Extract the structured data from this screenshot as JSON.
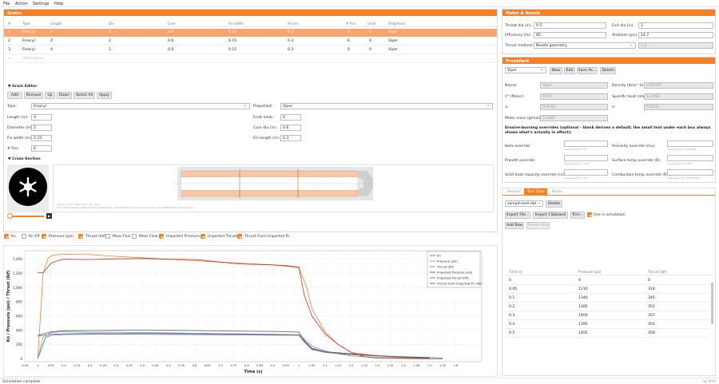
{
  "menu": [
    "File",
    "Action",
    "Settings",
    "Help"
  ],
  "grains": {
    "title": "Grains",
    "columns": [
      "#",
      "Type",
      "Length",
      "Dia",
      "Core",
      "Fin width",
      "Fin len",
      "# fins",
      "Units",
      "Propellant"
    ],
    "rows": [
      [
        "1",
        "Finocyl",
        "4",
        "2",
        "0.6",
        "0.15",
        "0.3",
        "6",
        "0",
        "Viper"
      ],
      [
        "2",
        "Finocyl",
        "4",
        "2",
        "0.6",
        "0.15",
        "0.3",
        "6",
        "0",
        "Viper"
      ],
      [
        "3",
        "Finocyl",
        "4",
        "2",
        "0.6",
        "0.15",
        "0.3",
        "6",
        "0",
        "Viper"
      ]
    ],
    "add_row_symbol": "+",
    "add_placeholder": "add a grain"
  },
  "grain_editor": {
    "title": "▼ Grain Editor",
    "buttons": [
      "Add",
      "Remove",
      "Up",
      "Down",
      "Select All",
      "Apply"
    ],
    "type_label": "Type:",
    "type_value": "Finocyl",
    "propellant_label": "Propellant:",
    "propellant_value": "Viper",
    "length_label": "Length (in):",
    "length_value": "4",
    "diameter_label": "Diameter (in):",
    "diameter_value": "2",
    "fin_width_label": "Fin width (in):",
    "fin_width_value": "0.15",
    "fins_label": "# fins:",
    "fins_value": "6",
    "ends_label": "Ends inhib.:",
    "ends_value": "0",
    "core_label": "Core dia (in):",
    "core_value": "0.6",
    "fin_length_label": "Fin length (in):",
    "fin_length_value": "0.3"
  },
  "cross_section": {
    "title": "▼ Cross-Section",
    "caption1": "3 grains · 12.0 in total · Finocyl (x3 · sel 1)",
    "caption2": "Cut on the horizontal centerline of the selected grain · shapes that don't render above use the section differently or at other angles"
  },
  "plot_toggles": [
    {
      "label": "Kn",
      "on": true
    },
    {
      "label": "Kn Eff",
      "on": false
    },
    {
      "label": "Pressure (psi)",
      "on": true
    },
    {
      "label": "Thrust (lbf)",
      "on": true
    },
    {
      "label": "Mass Flux",
      "on": false
    },
    {
      "label": "Mass Flow",
      "on": false
    },
    {
      "label": "Imported Pressure",
      "on": true
    },
    {
      "label": "Imported Thrust",
      "on": true
    },
    {
      "label": "Thrust From Imported Pc",
      "on": true
    }
  ],
  "chart_data": {
    "type": "line",
    "xlabel": "Time (s)",
    "ylabel": "Kn / Pressure (psi) / Thrust (lbf)",
    "ylim": [
      -40,
      1520
    ],
    "yticks": [
      0,
      200,
      400,
      600,
      800,
      1000,
      1200,
      1400
    ],
    "xlim": [
      -0.05,
      1.7
    ],
    "xticks": [
      -0.05,
      0,
      0.05,
      0.1,
      0.15,
      0.2,
      0.25,
      0.3,
      0.35,
      0.4,
      0.45,
      0.5,
      0.55,
      0.6,
      0.65,
      0.7,
      0.75,
      0.8,
      0.85,
      0.9,
      0.95,
      1,
      1.05,
      1.1,
      1.15,
      1.2,
      1.25,
      1.3,
      1.35,
      1.4,
      1.45,
      1.5,
      1.55,
      1.6
    ],
    "legend_placement": "top-right",
    "grid": true,
    "series": [
      {
        "name": "Kn",
        "color": "#4a7aa8",
        "x": [
          0,
          0.03,
          0.05,
          0.1,
          0.2,
          0.4,
          0.6,
          0.8,
          1.0,
          1.02,
          1.05,
          1.1,
          1.2,
          1.3,
          1.4,
          1.5,
          1.55
        ],
        "y": [
          0,
          300,
          330,
          340,
          345,
          345,
          340,
          335,
          330,
          250,
          140,
          90,
          60,
          40,
          30,
          20,
          10
        ]
      },
      {
        "name": "Pressure (psi)",
        "color": "#f58025",
        "x": [
          0,
          0.02,
          0.04,
          0.06,
          0.1,
          0.2,
          0.3,
          0.4,
          0.5,
          0.6,
          0.7,
          0.8,
          0.9,
          0.95,
          1.0,
          1.03,
          1.05,
          1.1,
          1.15,
          1.2,
          1.3,
          1.4,
          1.5
        ],
        "y": [
          0,
          1200,
          1420,
          1460,
          1470,
          1465,
          1440,
          1420,
          1400,
          1380,
          1360,
          1340,
          1320,
          1300,
          1280,
          1000,
          700,
          380,
          200,
          90,
          40,
          20,
          5
        ]
      },
      {
        "name": "Thrust (lbf)",
        "color": "#6aa86a",
        "x": [
          0,
          0.02,
          0.05,
          0.1,
          0.2,
          0.4,
          0.6,
          0.8,
          1.0,
          1.03,
          1.05,
          1.1,
          1.15,
          1.2,
          1.3,
          1.4,
          1.5
        ],
        "y": [
          0,
          300,
          370,
          380,
          375,
          370,
          360,
          350,
          340,
          250,
          180,
          110,
          70,
          40,
          20,
          10,
          5
        ]
      },
      {
        "name": "Imported Pressure (psi)",
        "color": "#c0342c",
        "x": [
          0,
          0.02,
          0.05,
          0.08,
          0.1,
          0.2,
          0.3,
          0.4,
          0.5,
          0.6,
          0.65,
          0.7,
          0.75,
          0.8,
          0.9,
          0.95,
          1.0,
          1.02,
          1.05,
          1.1,
          1.15,
          1.2,
          1.25,
          1.3,
          1.4,
          1.5,
          1.55
        ],
        "y": [
          1210,
          1210,
          1340,
          1385,
          1400,
          1395,
          1405,
          1410,
          1400,
          1395,
          1380,
          1360,
          1340,
          1330,
          1320,
          1310,
          1290,
          900,
          600,
          350,
          200,
          90,
          30,
          10,
          5,
          0,
          0
        ]
      },
      {
        "name": "Imported Thrust (lbf)",
        "color": "#8a5ab0",
        "x": [
          0,
          0.05,
          0.1,
          0.2,
          0.3,
          0.4,
          0.5,
          0.6,
          0.7,
          0.8,
          0.9,
          1.0,
          1.02,
          1.05,
          1.1,
          1.2,
          1.3,
          1.4,
          1.5
        ],
        "y": [
          318,
          345,
          352,
          357,
          354,
          358,
          355,
          352,
          348,
          345,
          340,
          330,
          240,
          130,
          90,
          60,
          40,
          25,
          10
        ]
      },
      {
        "name": "Thrust From Imported Pc (lbf)",
        "color": "#555555",
        "x": [
          0,
          0.05,
          0.1,
          0.2,
          0.3,
          0.4,
          0.5,
          0.6,
          0.7,
          0.8,
          0.9,
          1.0,
          1.02,
          1.05,
          1.1,
          1.2,
          1.3,
          1.4,
          1.5
        ],
        "y": [
          330,
          380,
          395,
          398,
          400,
          402,
          400,
          398,
          392,
          388,
          385,
          375,
          260,
          150,
          100,
          70,
          45,
          25,
          10
        ]
      }
    ]
  },
  "motor": {
    "title": "Motor & Nozzle",
    "throat_label": "Throat dia (in):",
    "throat_value": "0.5",
    "exit_label": "Exit dia (in):",
    "exit_value": "1",
    "efficiency_label": "Efficiency (%):",
    "efficiency_value": "85",
    "ambient_label": "Ambient (psi):",
    "ambient_value": "14.7",
    "thrust_method_label": "Thrust method:",
    "thrust_method_value": "Nozzle geometry",
    "thrust_extra_value": "1.2"
  },
  "propellant": {
    "title": "Propellant",
    "select_value": "Viper",
    "buttons": [
      "New",
      "Edit",
      "Save As...",
      "Delete"
    ],
    "name_label": "Name:",
    "name_value": "Viper",
    "density_label": "Density (lb/in^3):",
    "density_value": "0.05787",
    "cstar_label": "C* (ft/sec):",
    "cstar_value": "4704",
    "heat_ratio_label": "Specific heat ratio:",
    "heat_ratio_value": "1.2768",
    "a_label": "a:",
    "a_value": "0.0193",
    "n_label": "n:",
    "n_value": "0.4194",
    "molar_label": "Molar mass (g/mol):",
    "molar_value": "23.061",
    "erosive_title": "Erosive-burning overrides (optional - blank derives a default; the small text under each box always shows what's actually in effect):",
    "beta_label": "Beta override:",
    "beta_note": "using derived β = 0.0",
    "visc_label": "Viscosity override (mu):",
    "visc_note": "using derived μ = 0.000008",
    "prandtl_label": "Prandtl override:",
    "prandtl_note": "using derived Pr = 0.60",
    "surf_label": "Surface temp override (R):",
    "surf_note": "using derived Ts = 1000",
    "solid_label": "Solid heat capacity override (cs):",
    "solid_note": "using derived cs = 0.3",
    "comb_label": "Combustion temp override (R):",
    "comb_note": "using derived Tf = 4432.18848"
  },
  "testdata": {
    "tabs": [
      "Results",
      "Test Data",
      "Notes"
    ],
    "active_tab": "Test Data",
    "select_value": "sample-test-dat",
    "delete_label": "Delete",
    "import_file": "Import File...",
    "import_clip": "Import Clipboard",
    "trim": "Trim...",
    "use_sim_label": "Use in simulation",
    "add_row": "Add Row",
    "delete_row": "Delete Row",
    "columns": [
      "Time (s)",
      "Pressure (psi)",
      "Thrust (lbf)"
    ],
    "rows": [
      [
        "0",
        "0",
        "0"
      ],
      [
        "0.05",
        "1210",
        "318"
      ],
      [
        "0.1",
        "1340",
        "345"
      ],
      [
        "0.2",
        "1385",
        "352"
      ],
      [
        "0.3",
        "1400",
        "357"
      ],
      [
        "0.4",
        "1395",
        "354"
      ],
      [
        "0.5",
        "1405",
        "358"
      ]
    ]
  },
  "status": {
    "left": "Simulation complete",
    "right": "ng #04"
  }
}
